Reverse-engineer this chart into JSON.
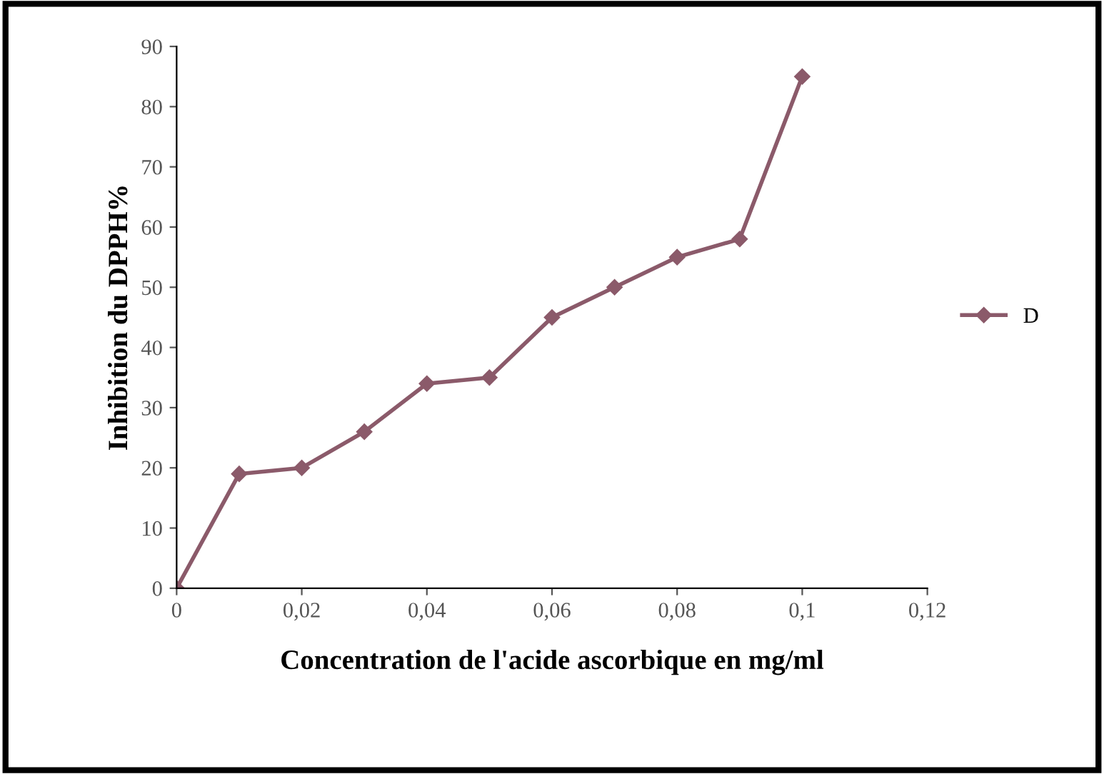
{
  "chart_data": {
    "type": "line",
    "xlabel": "Concentration de l'acide ascorbique en mg/ml",
    "ylabel": "Inhibition du DPPH%",
    "x": [
      0,
      0.01,
      0.02,
      0.03,
      0.04,
      0.05,
      0.06,
      0.07,
      0.08,
      0.09,
      0.1
    ],
    "series": [
      {
        "name": "D",
        "color": "#8b5a6a",
        "values": [
          0,
          19,
          20,
          26,
          34,
          35,
          45,
          50,
          55,
          58,
          85
        ]
      }
    ],
    "xlim": [
      0,
      0.12
    ],
    "xticks": [
      0,
      {
        "value": 0.02,
        "label": "0,02"
      },
      {
        "value": 0.04,
        "label": "0,04"
      },
      {
        "value": 0.06,
        "label": "0,06"
      },
      {
        "value": 0.08,
        "label": "0,08"
      },
      {
        "value": 0.1,
        "label": "0,1"
      },
      {
        "value": 0.12,
        "label": "0,12"
      }
    ],
    "ylim": [
      0,
      90
    ],
    "yticks": [
      0,
      10,
      20,
      30,
      40,
      50,
      60,
      70,
      80,
      90
    ],
    "marker": "diamond",
    "line_style": "solid",
    "legend": "right",
    "grid": false
  }
}
